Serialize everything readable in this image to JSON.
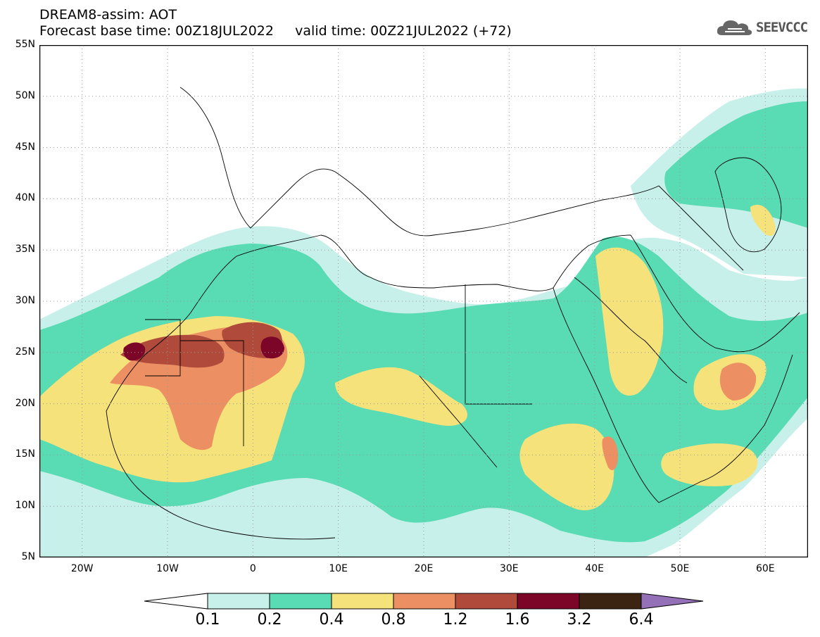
{
  "header": {
    "line1": "DREAM8-assim: AOT",
    "line2": "Forecast base time: 00Z18JUL2022     valid time: 00Z21JUL2022 (+72)"
  },
  "logo": {
    "text": "SEEVCCC",
    "icon": "cloud-icon"
  },
  "map": {
    "lon_range": [
      -25,
      65
    ],
    "lat_range": [
      5,
      55
    ],
    "grid": "dotted",
    "y_ticks": [
      "55N",
      "50N",
      "45N",
      "40N",
      "35N",
      "30N",
      "25N",
      "20N",
      "15N",
      "10N",
      "5N"
    ],
    "x_ticks": [
      "20W",
      "10W",
      "0",
      "10E",
      "20E",
      "30E",
      "40E",
      "50E",
      "60E"
    ]
  },
  "colorbar": {
    "levels": [
      "0.1",
      "0.2",
      "0.4",
      "0.8",
      "1.2",
      "1.6",
      "3.2",
      "6.4"
    ],
    "colors": [
      "#ffffff",
      "#c8f0ea",
      "#59dbb3",
      "#f5e27a",
      "#ec8f63",
      "#b04b3c",
      "#7c0628",
      "#3b2412",
      "#9370b8"
    ]
  }
}
